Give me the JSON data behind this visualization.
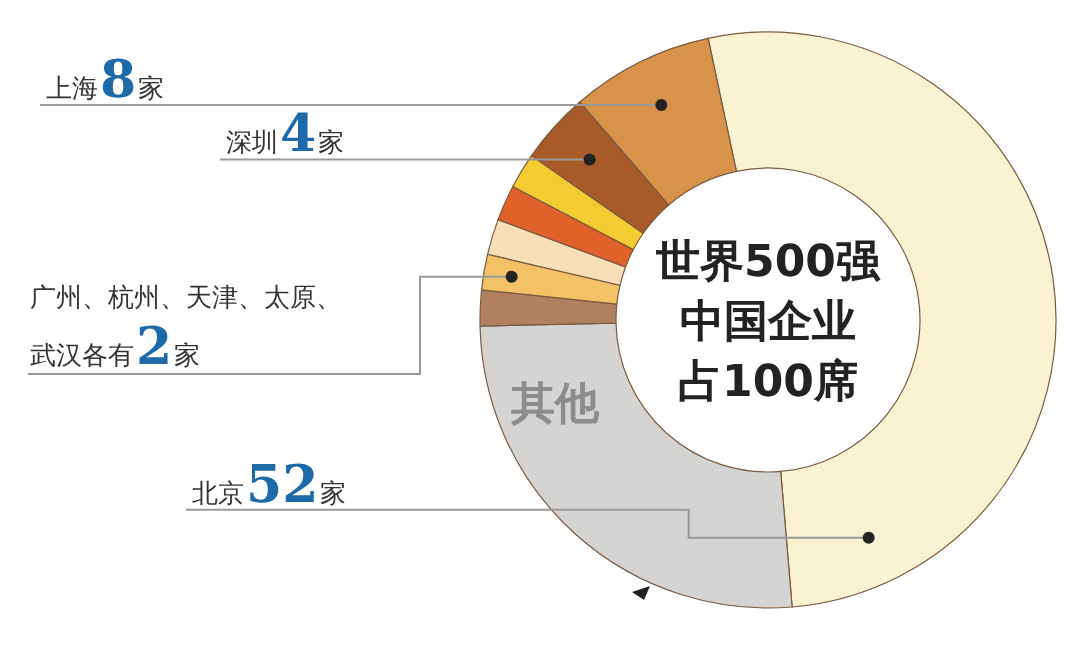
{
  "chart_data": {
    "type": "donut",
    "title": "世界500强中国企业占100席",
    "categories": [
      "北京",
      "其他",
      null,
      null,
      null,
      null,
      null,
      "深圳",
      "上海"
    ],
    "values": [
      52,
      26,
      2,
      2,
      2,
      2,
      2,
      4,
      8
    ],
    "colors": [
      "#faf3d2",
      "#d4d4d2",
      "#b08060",
      "#f3c266",
      "#f8dfb8",
      "#e0612a",
      "#f2cc30",
      "#a85a28",
      "#d9924a"
    ],
    "value_labels": [
      "52家",
      null,
      null,
      null,
      null,
      null,
      null,
      "4家",
      "8家"
    ],
    "annotations": [
      "广州、杭州、天津、太原、武汉各有2家"
    ]
  }
}
